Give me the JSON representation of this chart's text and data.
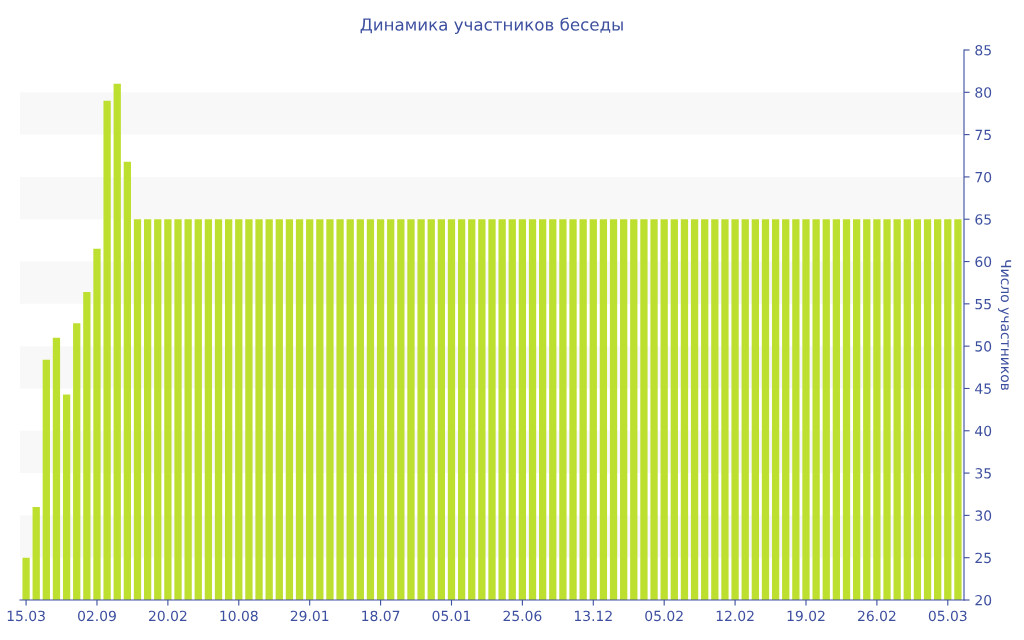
{
  "chart_data": {
    "type": "bar",
    "title": "Динамика участников беседы",
    "ylabel": "Число участников",
    "categories": [
      "15.03",
      null,
      null,
      null,
      null,
      null,
      null,
      "02.09",
      null,
      null,
      null,
      null,
      null,
      null,
      "20.02",
      null,
      null,
      null,
      null,
      null,
      null,
      "10.08",
      null,
      null,
      null,
      null,
      null,
      null,
      "29.01",
      null,
      null,
      null,
      null,
      null,
      null,
      "18.07",
      null,
      null,
      null,
      null,
      null,
      null,
      "05.01",
      null,
      null,
      null,
      null,
      null,
      null,
      "25.06",
      null,
      null,
      null,
      null,
      null,
      null,
      "13.12",
      null,
      null,
      null,
      null,
      null,
      null,
      "05.02",
      null,
      null,
      null,
      null,
      null,
      null,
      "12.02",
      null,
      null,
      null,
      null,
      null,
      null,
      "19.02",
      null,
      null,
      null,
      null,
      null,
      null,
      "26.02",
      null,
      null,
      null,
      null,
      null,
      null,
      "05.03",
      null
    ],
    "values": [
      25,
      31,
      48.4,
      51,
      44.3,
      52.7,
      56.4,
      61.5,
      79,
      81,
      71.8,
      65,
      65,
      65,
      65,
      65,
      65,
      65,
      65,
      65,
      65,
      65,
      65,
      65,
      65,
      65,
      65,
      65,
      65,
      65,
      65,
      65,
      65,
      65,
      65,
      65,
      65,
      65,
      65,
      65,
      65,
      65,
      65,
      65,
      65,
      65,
      65,
      65,
      65,
      65,
      65,
      65,
      65,
      65,
      65,
      65,
      65,
      65,
      65,
      65,
      65,
      65,
      65,
      65,
      65,
      65,
      65,
      65,
      65,
      65,
      65,
      65,
      65,
      65,
      65,
      65,
      65,
      65,
      65,
      65,
      65,
      65,
      65,
      65,
      65,
      65,
      65,
      65,
      65,
      65,
      65,
      65,
      65
    ],
    "color": "#bddf2f",
    "ylim": [
      20,
      85
    ],
    "yticks": [
      20,
      25,
      30,
      35,
      40,
      45,
      50,
      55,
      60,
      65,
      70,
      75,
      80,
      85
    ],
    "grid": false,
    "legend": false,
    "bands": [
      {
        "axis": "y",
        "from": 25,
        "to": 30,
        "color": "#f8f8f8"
      },
      {
        "axis": "y",
        "from": 35,
        "to": 40,
        "color": "#f8f8f8"
      },
      {
        "axis": "y",
        "from": 45,
        "to": 50,
        "color": "#f8f8f8"
      },
      {
        "axis": "y",
        "from": 55,
        "to": 60,
        "color": "#f8f8f8"
      },
      {
        "axis": "y",
        "from": 65,
        "to": 70,
        "color": "#f8f8f8"
      },
      {
        "axis": "y",
        "from": 75,
        "to": 80,
        "color": "#f8f8f8"
      }
    ]
  }
}
